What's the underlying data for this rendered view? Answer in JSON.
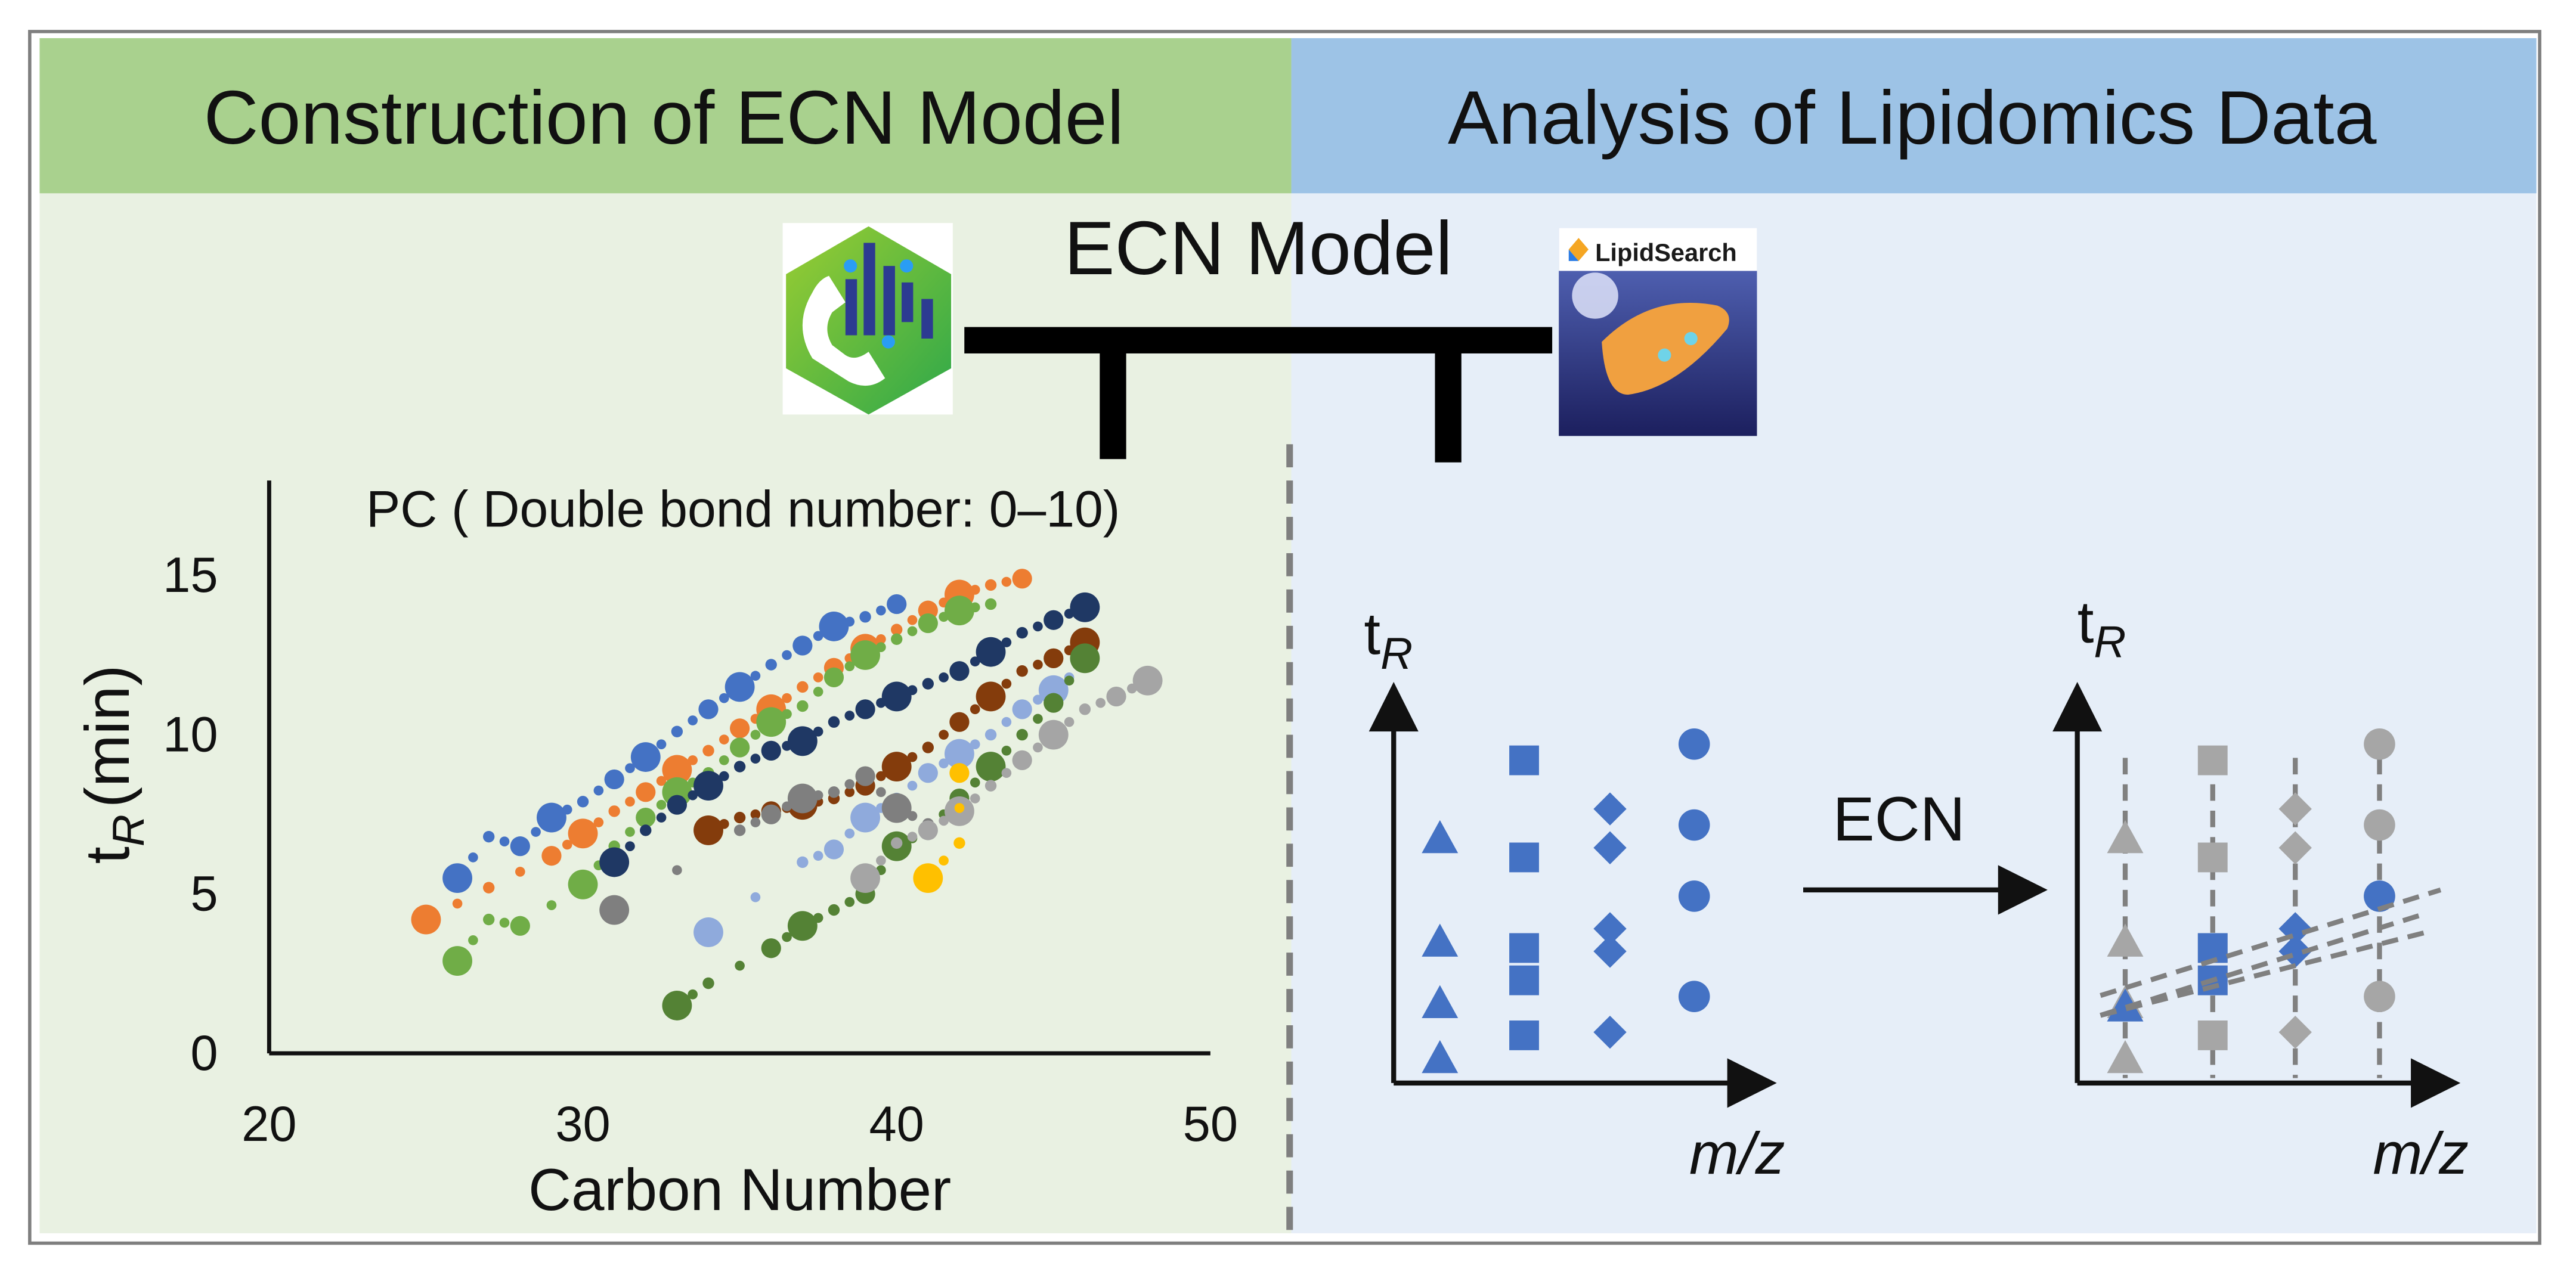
{
  "header": {
    "left_title": "Construction of ECN Model",
    "right_title": "Analysis of Lipidomics Data",
    "left_color": "#a9d18e",
    "right_color": "#9dc3e6"
  },
  "connector": {
    "label": "ECN Model",
    "left_logo_icon": "hexagon-app-logo-icon",
    "right_logo_label": "LipidSearch"
  },
  "chart_data": {
    "type": "scatter",
    "title": "PC ( Double bond number: 0–10)",
    "xlabel": "Carbon Number",
    "ylabel_main": "t",
    "ylabel_sub": "R",
    "ylabel_rest": "(min)",
    "xlim": [
      20,
      50
    ],
    "ylim": [
      0,
      17
    ],
    "xticks": [
      "20",
      "30",
      "40",
      "50"
    ],
    "yticks": [
      "0",
      "5",
      "10",
      "15"
    ],
    "grid": false,
    "series": [
      {
        "color": "#4472c4",
        "big": true,
        "points": [
          [
            26,
            5.5
          ],
          [
            27,
            6.8
          ],
          [
            28,
            6.5
          ],
          [
            29,
            7.4
          ],
          [
            30,
            7.9
          ],
          [
            31,
            8.6
          ],
          [
            32,
            9.3
          ],
          [
            33,
            10.1
          ],
          [
            34,
            10.8
          ],
          [
            35,
            11.5
          ],
          [
            36,
            12.2
          ],
          [
            37,
            12.8
          ],
          [
            38,
            13.4
          ],
          [
            39,
            13.7
          ],
          [
            40,
            14.1
          ]
        ]
      },
      {
        "color": "#ed7d31",
        "big": true,
        "points": [
          [
            25,
            4.2
          ],
          [
            27,
            5.2
          ],
          [
            29,
            6.2
          ],
          [
            30,
            6.9
          ],
          [
            31,
            7.6
          ],
          [
            32,
            8.2
          ],
          [
            33,
            8.9
          ],
          [
            34,
            9.5
          ],
          [
            35,
            10.2
          ],
          [
            36,
            10.8
          ],
          [
            37,
            11.5
          ],
          [
            38,
            12.1
          ],
          [
            39,
            12.7
          ],
          [
            40,
            13.3
          ],
          [
            41,
            13.9
          ],
          [
            42,
            14.4
          ],
          [
            43,
            14.7
          ],
          [
            44,
            14.9
          ]
        ]
      },
      {
        "color": "#70ad47",
        "big": true,
        "points": [
          [
            26,
            2.9
          ],
          [
            27,
            4.2
          ],
          [
            28,
            4.0
          ],
          [
            30,
            5.3
          ],
          [
            31,
            6.5
          ],
          [
            32,
            7.4
          ],
          [
            33,
            8.2
          ],
          [
            34,
            8.8
          ],
          [
            35,
            9.6
          ],
          [
            36,
            10.4
          ],
          [
            37,
            10.9
          ],
          [
            38,
            11.8
          ],
          [
            39,
            12.5
          ],
          [
            40,
            13.0
          ],
          [
            41,
            13.5
          ],
          [
            42,
            13.9
          ],
          [
            43,
            14.1
          ]
        ]
      },
      {
        "color": "#1f3864",
        "big": true,
        "points": [
          [
            31,
            6.0
          ],
          [
            32,
            7.0
          ],
          [
            33,
            7.8
          ],
          [
            34,
            8.4
          ],
          [
            35,
            9.0
          ],
          [
            36,
            9.5
          ],
          [
            37,
            9.8
          ],
          [
            38,
            10.4
          ],
          [
            39,
            10.8
          ],
          [
            40,
            11.2
          ],
          [
            41,
            11.6
          ],
          [
            42,
            12.0
          ],
          [
            43,
            12.6
          ],
          [
            44,
            13.2
          ],
          [
            45,
            13.6
          ],
          [
            46,
            14.0
          ]
        ]
      },
      {
        "color": "#843c0c",
        "big": true,
        "points": [
          [
            34,
            7.0
          ],
          [
            35,
            7.4
          ],
          [
            36,
            7.6
          ],
          [
            37,
            7.8
          ],
          [
            38,
            8.0
          ],
          [
            39,
            8.4
          ],
          [
            40,
            9.0
          ],
          [
            41,
            9.6
          ],
          [
            42,
            10.4
          ],
          [
            43,
            11.2
          ],
          [
            44,
            12.0
          ],
          [
            45,
            12.4
          ],
          [
            46,
            12.9
          ]
        ]
      },
      {
        "color": "#8faadc",
        "big": true,
        "points": [
          [
            34,
            3.8
          ],
          [
            37,
            6.0
          ],
          [
            38,
            6.4
          ],
          [
            39,
            7.4
          ],
          [
            40,
            8.0
          ],
          [
            41,
            8.8
          ],
          [
            42,
            9.4
          ],
          [
            43,
            10.0
          ],
          [
            44,
            10.8
          ],
          [
            45,
            11.4
          ],
          [
            46,
            12.2
          ]
        ]
      },
      {
        "color": "#548235",
        "big": true,
        "points": [
          [
            33,
            1.5
          ],
          [
            34,
            2.2
          ],
          [
            36,
            3.3
          ],
          [
            37,
            4.0
          ],
          [
            38,
            4.5
          ],
          [
            39,
            5.0
          ],
          [
            40,
            6.5
          ],
          [
            41,
            7.0
          ],
          [
            42,
            8.0
          ],
          [
            43,
            9.0
          ],
          [
            44,
            10.0
          ],
          [
            45,
            11.0
          ],
          [
            46,
            12.4
          ]
        ]
      },
      {
        "color": "#7f7f7f",
        "big": true,
        "points": [
          [
            31,
            4.5
          ],
          [
            35,
            7.0
          ],
          [
            36,
            7.5
          ],
          [
            37,
            8.0
          ],
          [
            38,
            8.2
          ],
          [
            39,
            8.7
          ],
          [
            40,
            7.7
          ],
          [
            41,
            7.2
          ]
        ]
      },
      {
        "color": "#a5a5a5",
        "big": true,
        "points": [
          [
            39,
            5.5
          ],
          [
            40,
            6.6
          ],
          [
            41,
            7.0
          ],
          [
            42,
            7.6
          ],
          [
            43,
            8.4
          ],
          [
            44,
            9.2
          ],
          [
            45,
            10.0
          ],
          [
            46,
            10.8
          ],
          [
            47,
            11.2
          ],
          [
            48,
            11.7
          ]
        ]
      },
      {
        "color": "#ffc000",
        "big": true,
        "points": [
          [
            41,
            5.5
          ],
          [
            42,
            6.6
          ],
          [
            42,
            8.8
          ]
        ]
      }
    ]
  },
  "tr_axes": {
    "y_label_main": "t",
    "y_label_sub": "R",
    "x_label": "m/z",
    "arrow_label": "ECN",
    "marker_color": "#4472c4",
    "faded_color": "#a6a6a6"
  },
  "left_plot_points": {
    "triangles": [
      6.8,
      3.6,
      1.7,
      0.0
    ],
    "squares": [
      8.8,
      5.8,
      3.0,
      2.0,
      0.3
    ],
    "diamonds": [
      7.4,
      6.2,
      3.7,
      3.0,
      0.5
    ],
    "circles": [
      9.2,
      6.7,
      4.5,
      1.4
    ]
  },
  "right_plot_highlight": {
    "triangle": 1.7,
    "squares": [
      3.0,
      2.0
    ],
    "diamonds": [
      3.7,
      3.0
    ],
    "circle": 4.5
  }
}
